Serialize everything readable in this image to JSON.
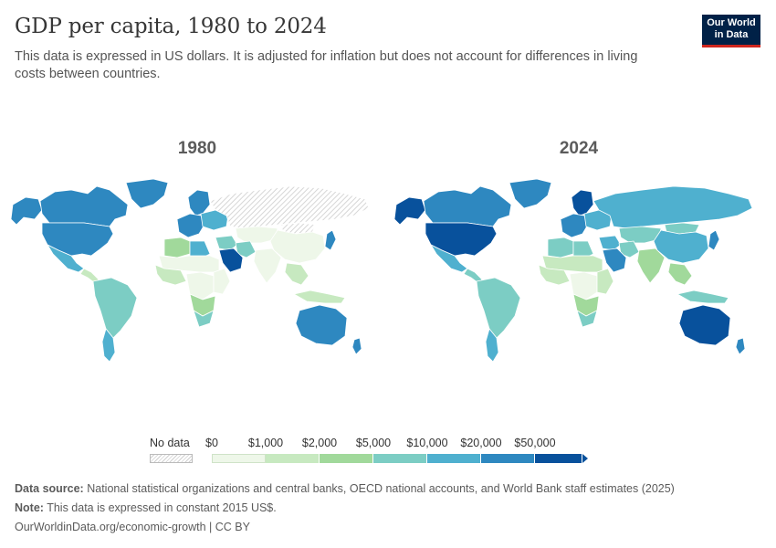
{
  "header": {
    "title": "GDP per capita, 1980 to 2024",
    "subtitle": "This data is expressed in US dollars. It is adjusted for inflation but does not account for differences in living costs between countries."
  },
  "logo": {
    "line1": "Our World",
    "line2": "in Data"
  },
  "maps": [
    {
      "year": "1980",
      "regions": {
        "canada": "#2e88c0",
        "usa": "#2e88c0",
        "alaska": "#2e88c0",
        "greenland": "#2e88c0",
        "mexico": "#4fb0cf",
        "central_america": "#c7e9c0",
        "south_america": "#7ccdc4",
        "southern_cone": "#4fb0cf",
        "europe_west": "#2e88c0",
        "scandinavia": "#2e88c0",
        "europe_east": "#4fb0cf",
        "ussr": "nodata",
        "mongolia": "nodata",
        "north_africa": "#a1d99b",
        "libya": "#4fb0cf",
        "sahel": "#eef7e9",
        "west_africa": "#c7e9c0",
        "central_africa": "#eef7e9",
        "east_africa": "#eef7e9",
        "southern_africa": "#a1d99b",
        "south_africa": "#7ccdc4",
        "middle_east": "#7ccdc4",
        "arabia": "#08519c",
        "iran": "#7ccdc4",
        "central_asia": "#eef7e9",
        "south_asia": "#eef7e9",
        "china": "#eef7e9",
        "japan": "#2e88c0",
        "se_asia": "#c7e9c0",
        "indonesia": "#c7e9c0",
        "australia": "#2e88c0",
        "new_zealand": "#2e88c0"
      }
    },
    {
      "year": "2024",
      "regions": {
        "canada": "#2e88c0",
        "usa": "#08519c",
        "alaska": "#08519c",
        "greenland": "#2e88c0",
        "mexico": "#4fb0cf",
        "central_america": "#7ccdc4",
        "south_america": "#7ccdc4",
        "southern_cone": "#4fb0cf",
        "europe_west": "#2e88c0",
        "scandinavia": "#08519c",
        "europe_east": "#4fb0cf",
        "ussr": "#4fb0cf",
        "mongolia": "#7ccdc4",
        "north_africa": "#7ccdc4",
        "libya": "#7ccdc4",
        "sahel": "#c7e9c0",
        "west_africa": "#c7e9c0",
        "central_africa": "#eef7e9",
        "east_africa": "#c7e9c0",
        "southern_africa": "#a1d99b",
        "south_africa": "#7ccdc4",
        "middle_east": "#4fb0cf",
        "arabia": "#2e88c0",
        "iran": "#7ccdc4",
        "central_asia": "#7ccdc4",
        "south_asia": "#a1d99b",
        "china": "#4fb0cf",
        "japan": "#2e88c0",
        "se_asia": "#a1d99b",
        "indonesia": "#7ccdc4",
        "australia": "#08519c",
        "new_zealand": "#2e88c0"
      }
    }
  ],
  "legend": {
    "no_data_label": "No data",
    "ticks": [
      "$0",
      "$1,000",
      "$2,000",
      "$5,000",
      "$10,000",
      "$20,000",
      "$50,000"
    ],
    "colors": [
      "#eef7e9",
      "#c7e9c0",
      "#a1d99b",
      "#7ccdc4",
      "#4fb0cf",
      "#2e88c0",
      "#08519c"
    ]
  },
  "footer": {
    "source_label": "Data source:",
    "source_text": "National statistical organizations and central banks, OECD national accounts, and World Bank staff estimates (2025)",
    "note_label": "Note:",
    "note_text": "This data is expressed in constant 2015 US$.",
    "url": "OurWorldinData.org/economic-growth | CC BY"
  }
}
